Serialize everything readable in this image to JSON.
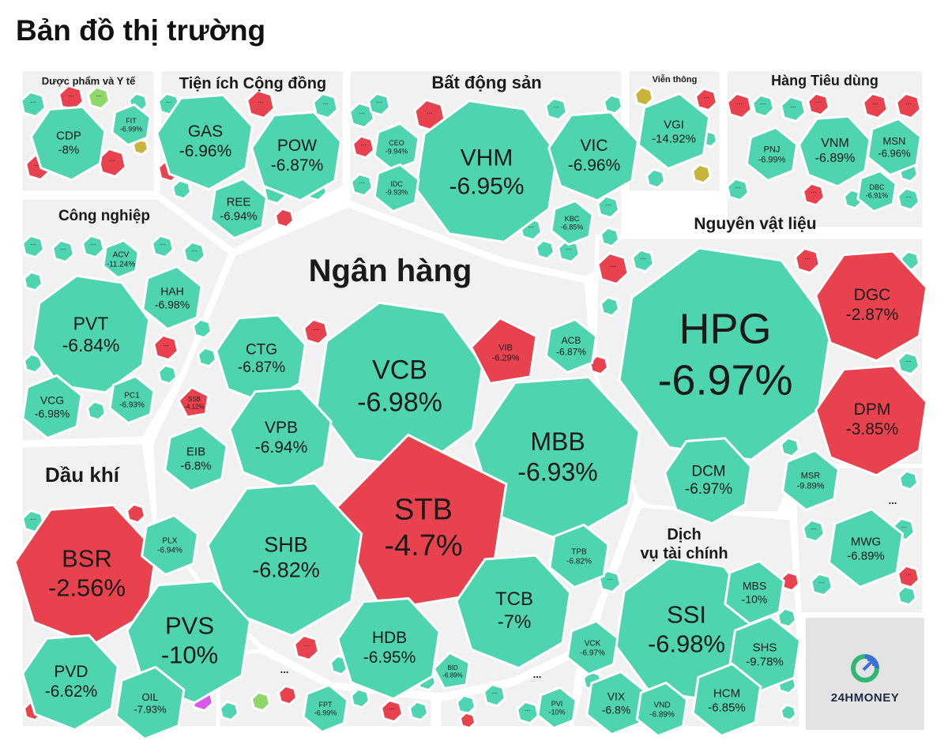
{
  "title": "Bản đồ thị trường",
  "brand": {
    "name": "24HMONEY",
    "logo_icon": "24hmoney-logo-icon"
  },
  "colors": {
    "up_green": "#4fd4b0",
    "down_red": "#e8424f",
    "ceiling_magenta": "#d85ae8",
    "neutral_yellow": "#c8b43a",
    "light_green": "#8ed86a",
    "sector_bg": "#f1f1f1"
  },
  "chart_data": {
    "type": "treemap",
    "unit": "%",
    "sectors": [
      {
        "name": "Dược phẩm và Y tế",
        "stocks": [
          {
            "ticker": "CDP",
            "change": "-8%",
            "value": -8
          },
          {
            "ticker": "FIT",
            "change": "-6.99%",
            "value": -6.99
          }
        ]
      },
      {
        "name": "Tiện ích Cộng đồng",
        "stocks": [
          {
            "ticker": "GAS",
            "change": "-6.96%",
            "value": -6.96
          },
          {
            "ticker": "POW",
            "change": "-6.87%",
            "value": -6.87
          },
          {
            "ticker": "REE",
            "change": "-6.94%",
            "value": -6.94
          }
        ]
      },
      {
        "name": "Bất động sản",
        "stocks": [
          {
            "ticker": "VHM",
            "change": "-6.95%",
            "value": -6.95
          },
          {
            "ticker": "VIC",
            "change": "-6.96%",
            "value": -6.96
          },
          {
            "ticker": "CEO",
            "change": "-9.94%",
            "value": -9.94
          },
          {
            "ticker": "IDC",
            "change": "-9.93%",
            "value": -9.93
          },
          {
            "ticker": "KBC",
            "change": "-6.85%",
            "value": -6.85
          }
        ]
      },
      {
        "name": "Viễn thông",
        "stocks": [
          {
            "ticker": "VGI",
            "change": "-14.92%",
            "value": -14.92
          }
        ]
      },
      {
        "name": "Hàng Tiêu dùng",
        "stocks": [
          {
            "ticker": "PNJ",
            "change": "-6.99%",
            "value": -6.99
          },
          {
            "ticker": "VNM",
            "change": "-6.89%",
            "value": -6.89
          },
          {
            "ticker": "MSN",
            "change": "-6.96%",
            "value": -6.96
          },
          {
            "ticker": "DBC",
            "change": "-6.91%",
            "value": -6.91
          }
        ]
      },
      {
        "name": "Công nghiệp",
        "stocks": [
          {
            "ticker": "PVT",
            "change": "-6.84%",
            "value": -6.84
          },
          {
            "ticker": "ACV",
            "change": "-11.24%",
            "value": -11.24
          },
          {
            "ticker": "HAH",
            "change": "-6.98%",
            "value": -6.98
          },
          {
            "ticker": "VCG",
            "change": "-6.98%",
            "value": -6.98
          },
          {
            "ticker": "PC1",
            "change": "-6.93%",
            "value": -6.93
          }
        ]
      },
      {
        "name": "Ngân hàng",
        "stocks": [
          {
            "ticker": "VCB",
            "change": "-6.98%",
            "value": -6.98
          },
          {
            "ticker": "CTG",
            "change": "-6.87%",
            "value": -6.87
          },
          {
            "ticker": "VIB",
            "change": "-6.29%",
            "value": -6.29
          },
          {
            "ticker": "ACB",
            "change": "-6.87%",
            "value": -6.87
          },
          {
            "ticker": "SSB",
            "change": "-4.12%",
            "value": -4.12
          },
          {
            "ticker": "VPB",
            "change": "-6.94%",
            "value": -6.94
          },
          {
            "ticker": "EIB",
            "change": "-6.8%",
            "value": -6.8
          },
          {
            "ticker": "MBB",
            "change": "-6.93%",
            "value": -6.93
          },
          {
            "ticker": "STB",
            "change": "-4.7%",
            "value": -4.7
          },
          {
            "ticker": "SHB",
            "change": "-6.82%",
            "value": -6.82
          },
          {
            "ticker": "TPB",
            "change": "-6.82%",
            "value": -6.82
          },
          {
            "ticker": "TCB",
            "change": "-7%",
            "value": -7
          },
          {
            "ticker": "HDB",
            "change": "-6.95%",
            "value": -6.95
          },
          {
            "ticker": "BID",
            "change": "-6.89%",
            "value": -6.89
          }
        ]
      },
      {
        "name": "Nguyên vật liệu",
        "stocks": [
          {
            "ticker": "HPG",
            "change": "-6.97%",
            "value": -6.97
          },
          {
            "ticker": "DGC",
            "change": "-2.87%",
            "value": -2.87
          },
          {
            "ticker": "DPM",
            "change": "-3.85%",
            "value": -3.85
          },
          {
            "ticker": "DCM",
            "change": "-6.97%",
            "value": -6.97
          },
          {
            "ticker": "MSR",
            "change": "-9.89%",
            "value": -9.89
          }
        ]
      },
      {
        "name": "Dầu khí",
        "stocks": [
          {
            "ticker": "BSR",
            "change": "-2.56%",
            "value": -2.56
          },
          {
            "ticker": "PLX",
            "change": "-6.94%",
            "value": -6.94
          },
          {
            "ticker": "PVS",
            "change": "-10%",
            "value": -10
          },
          {
            "ticker": "PVD",
            "change": "-6.62%",
            "value": -6.62
          },
          {
            "ticker": "OIL",
            "change": "-7.93%",
            "value": -7.93
          }
        ]
      },
      {
        "name": "Dịch vụ tài chính",
        "name_lines": [
          "Dịch",
          "vụ tài chính"
        ],
        "stocks": [
          {
            "ticker": "SSI",
            "change": "-6.98%",
            "value": -6.98
          },
          {
            "ticker": "MBS",
            "change": "-10%",
            "value": -10
          },
          {
            "ticker": "SHS",
            "change": "-9.78%",
            "value": -9.78
          },
          {
            "ticker": "VCK",
            "change": "-6.97%",
            "value": -6.97
          },
          {
            "ticker": "VIX",
            "change": "-6.8%",
            "value": -6.8
          },
          {
            "ticker": "VND",
            "change": "-6.89%",
            "value": -6.89
          },
          {
            "ticker": "HCM",
            "change": "-6.85%",
            "value": -6.85
          }
        ]
      },
      {
        "name": "...",
        "stocks": [
          {
            "ticker": "MWG",
            "change": "-6.89%",
            "value": -6.89
          }
        ]
      },
      {
        "name": "...",
        "stocks": [
          {
            "ticker": "FPT",
            "change": "-6.99%",
            "value": -6.99
          }
        ]
      },
      {
        "name": "...",
        "stocks": [
          {
            "ticker": "PVI",
            "change": "-10%",
            "value": -10
          }
        ]
      }
    ],
    "more_label": "..."
  }
}
